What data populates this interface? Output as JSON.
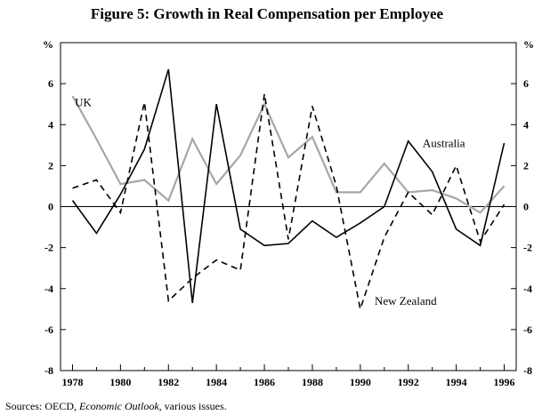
{
  "figure": {
    "title": "Figure 5: Growth in Real Compensation per Employee",
    "source_prefix": "Sources:  OECD, ",
    "source_publication": "Economic Outlook",
    "source_suffix": ", various issues."
  },
  "chart_data": {
    "type": "line",
    "title": "Figure 5: Growth in Real Compensation per Employee",
    "xlabel": "",
    "ylabel": "%",
    "y_unit_left": "%",
    "y_unit_right": "%",
    "xlim": [
      1977.5,
      1996.5
    ],
    "ylim": [
      -8,
      8
    ],
    "x_ticks": [
      1978,
      1980,
      1982,
      1984,
      1986,
      1988,
      1990,
      1992,
      1994,
      1996
    ],
    "x_tick_labels": [
      "1978",
      "1980",
      "1982",
      "1984",
      "1986",
      "1988",
      "1990",
      "1992",
      "1994",
      "1996"
    ],
    "y_ticks": [
      -8,
      -6,
      -4,
      -2,
      0,
      2,
      4,
      6
    ],
    "y_tick_labels": [
      "-8",
      "-6",
      "-4",
      "-2",
      "0",
      "2",
      "4",
      "6"
    ],
    "grid": false,
    "zero_line": true,
    "x": [
      1978,
      1979,
      1980,
      1981,
      1982,
      1983,
      1984,
      1985,
      1986,
      1987,
      1988,
      1989,
      1990,
      1991,
      1992,
      1993,
      1994,
      1995,
      1996
    ],
    "series": [
      {
        "name": "UK",
        "color": "#a6a6a6",
        "dash": "solid",
        "values": [
          5.4,
          3.3,
          1.1,
          1.3,
          0.3,
          3.3,
          1.1,
          2.5,
          5.0,
          2.4,
          3.4,
          0.7,
          0.7,
          2.1,
          0.7,
          0.8,
          0.4,
          -0.3,
          1.0
        ]
      },
      {
        "name": "Australia",
        "color": "#000000",
        "dash": "solid",
        "values": [
          0.3,
          -1.3,
          0.6,
          2.8,
          6.7,
          -4.7,
          5.0,
          -1.1,
          -1.9,
          -1.8,
          -0.7,
          -1.5,
          -0.8,
          0.0,
          3.2,
          1.7,
          -1.1,
          -1.9,
          3.1
        ]
      },
      {
        "name": "New Zealand",
        "color": "#000000",
        "dash": "dashed",
        "values": [
          0.9,
          1.3,
          -0.3,
          5.1,
          -4.6,
          -3.5,
          -2.6,
          -3.1,
          5.5,
          -1.6,
          4.9,
          1.0,
          -5.0,
          -1.5,
          0.7,
          -0.4,
          2.0,
          -1.7,
          0.1
        ]
      }
    ]
  }
}
